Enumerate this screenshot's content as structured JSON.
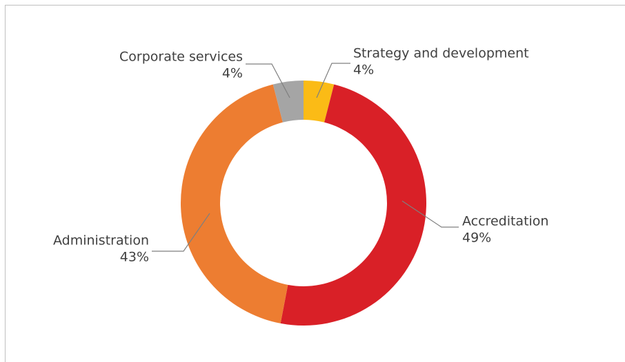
{
  "chart_data": {
    "type": "donut",
    "categories": [
      "Strategy and development",
      "Accreditation",
      "Administration",
      "Corporate services"
    ],
    "values": [
      4,
      49,
      43,
      4
    ],
    "value_labels": [
      "4%",
      "49%",
      "43%",
      "4%"
    ],
    "colors": [
      "#fbbb16",
      "#d92027",
      "#ed7d31",
      "#a5a5a5"
    ]
  }
}
